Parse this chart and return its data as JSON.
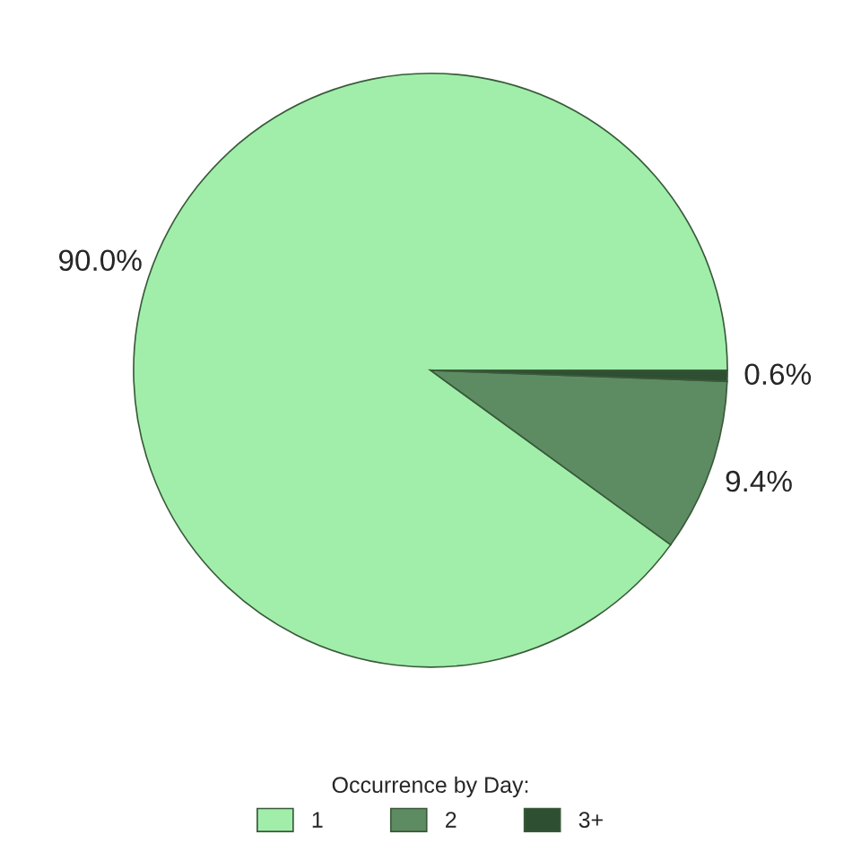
{
  "chart_data": {
    "type": "pie",
    "categories": [
      "1",
      "2",
      "3+"
    ],
    "values": [
      90.0,
      9.4,
      0.6
    ],
    "colors": [
      "#a0eeaa",
      "#5e8c62",
      "#2f4f33"
    ],
    "value_labels": [
      "90.0%",
      "9.4%",
      "0.6%"
    ],
    "legend": "bottom",
    "legend_title": "Occurrence by Day:"
  }
}
